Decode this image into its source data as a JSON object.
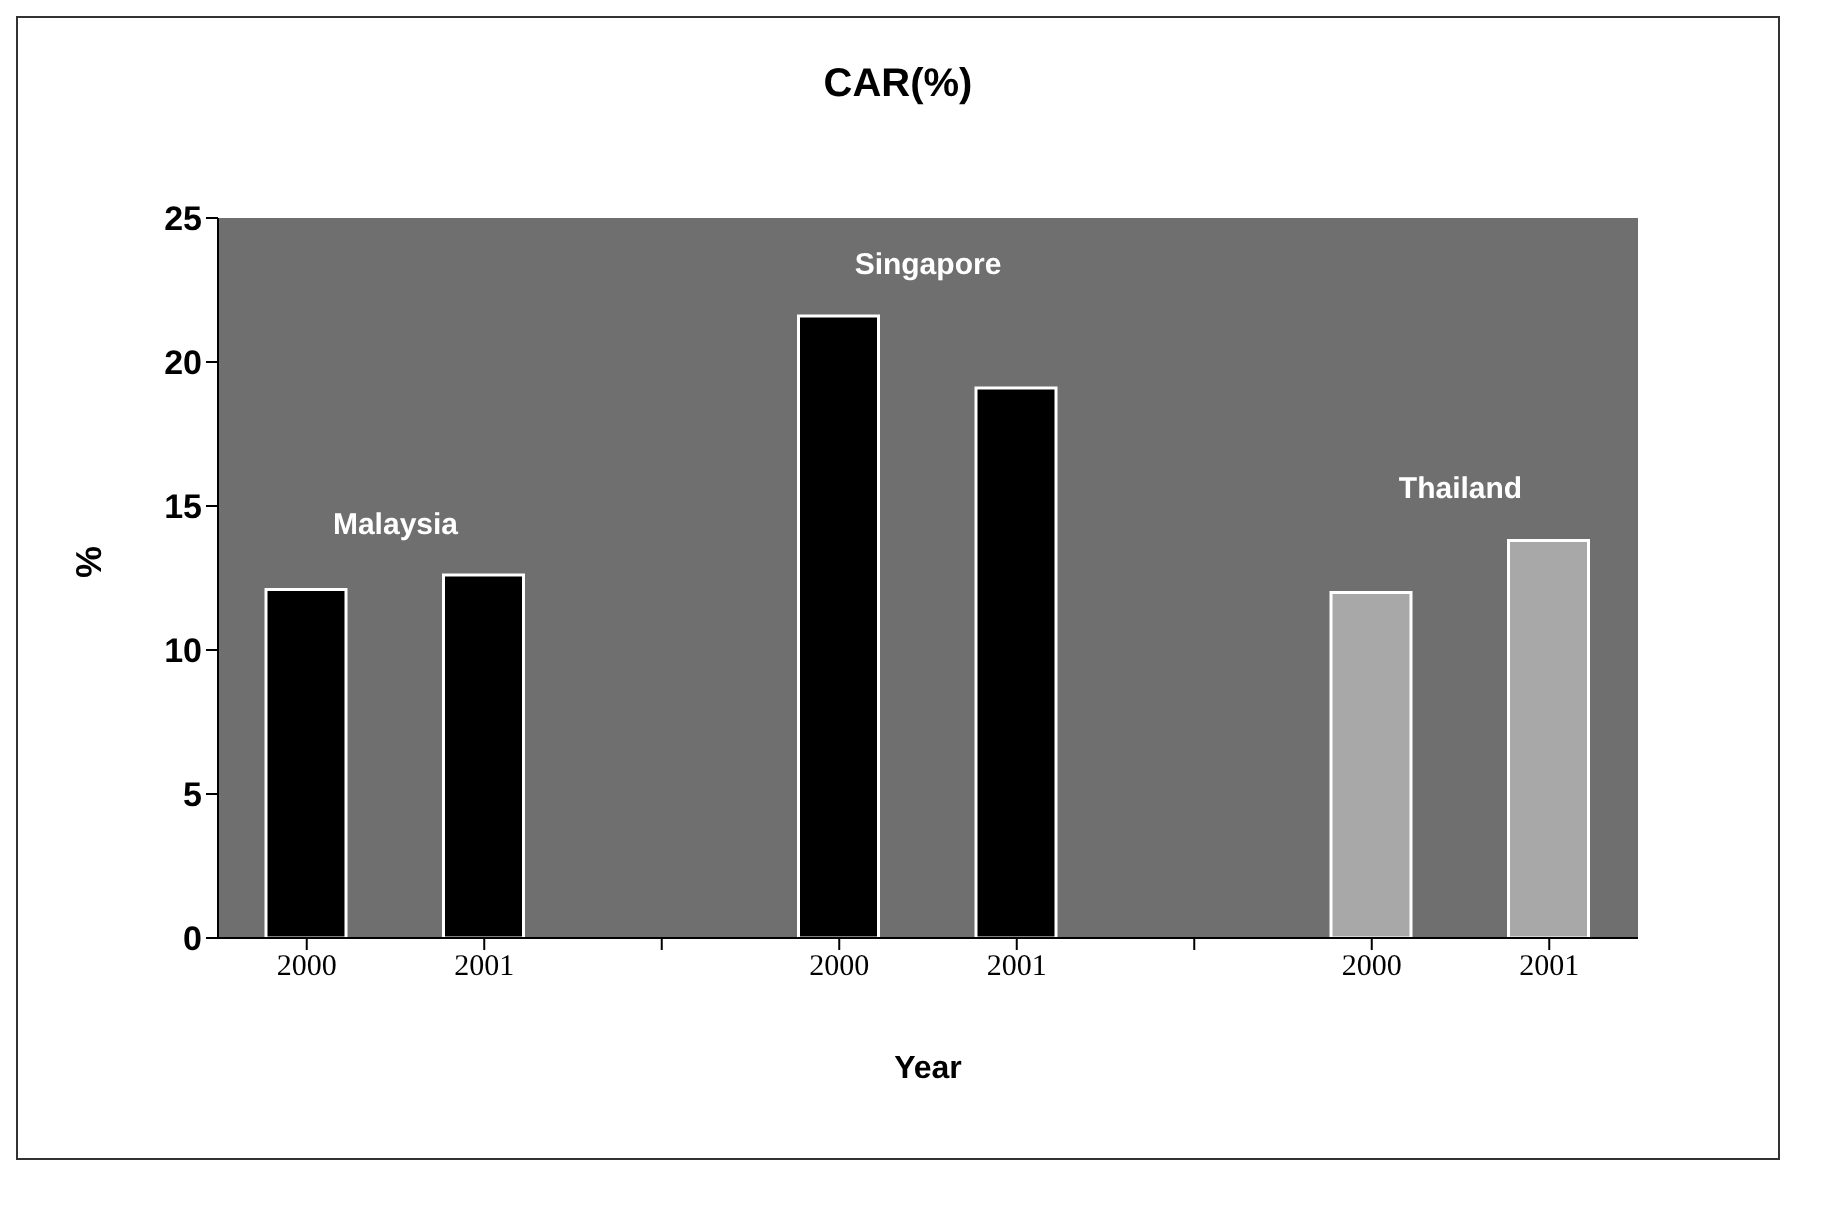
{
  "chart_data": {
    "type": "bar",
    "title": "CAR(%)",
    "xlabel": "Year",
    "ylabel": "%",
    "categories": [
      "2000",
      "2001",
      null,
      "2000",
      "2001",
      null,
      "2000",
      "2001"
    ],
    "values": [
      12.1,
      12.6,
      null,
      21.6,
      19.1,
      null,
      12,
      13.8
    ],
    "colors": [
      "#000000",
      "#000000",
      null,
      "#000000",
      "#000000",
      null,
      "#a8a8a8",
      "#a8a8a8"
    ],
    "ylim": [
      0,
      25
    ],
    "yticks": [
      0,
      5,
      10,
      15,
      20,
      25
    ],
    "annotations": [
      "Malaysia",
      "Singapore",
      "Thailand"
    ]
  }
}
